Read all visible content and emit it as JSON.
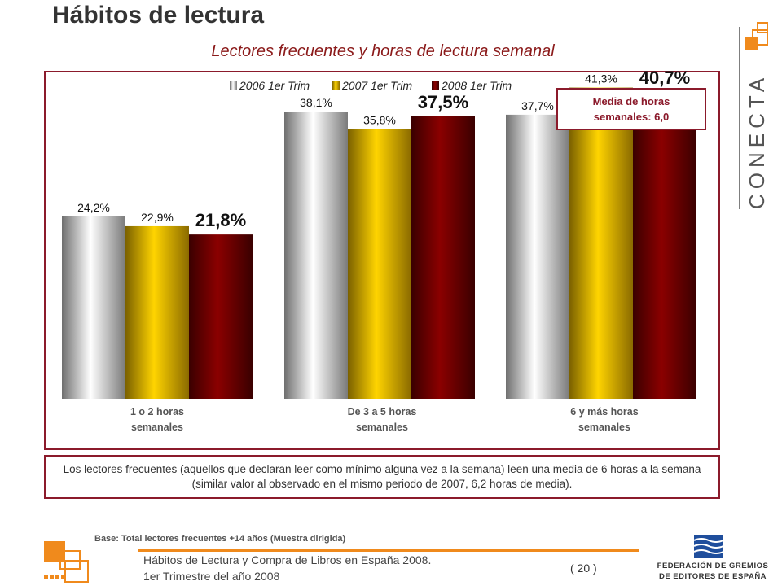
{
  "header": {
    "title": "Hábitos de lectura",
    "subtitle": "Lectores frecuentes y horas de lectura semanal"
  },
  "brand": {
    "logo_text": "CONECTA",
    "accent": "#f08a1c",
    "frame_color": "#8b1a2b"
  },
  "media_box": {
    "line1": "Media de horas",
    "line2": "semanales: 6,0"
  },
  "chart_data": {
    "type": "bar",
    "categories": [
      "1 o 2 horas semanales",
      "De 3 a 5 horas semanales",
      "6 y más horas semanales"
    ],
    "category_lines": [
      [
        "1 o 2 horas",
        "semanales"
      ],
      [
        "De 3 a 5 horas",
        "semanales"
      ],
      [
        "6 y más horas",
        "semanales"
      ]
    ],
    "series": [
      {
        "name": "2006 1er Trim",
        "values": [
          24.2,
          38.1,
          37.7
        ],
        "labels": [
          "24,2%",
          "38,1%",
          "37,7%"
        ],
        "color": "#d9d9d9"
      },
      {
        "name": "2007 1er Trim",
        "values": [
          22.9,
          35.8,
          41.3
        ],
        "labels": [
          "22,9%",
          "35,8%",
          "41,3%"
        ],
        "color": "#f2c200"
      },
      {
        "name": "2008 1er Trim",
        "values": [
          21.8,
          37.5,
          40.7
        ],
        "labels": [
          "21,8%",
          "37,5%",
          "40,7%"
        ],
        "color": "#7a0000"
      }
    ],
    "legend_position": "top",
    "grid": false,
    "ylim": [
      0,
      50
    ]
  },
  "note": "Los lectores frecuentes (aquellos que declaran leer como mínimo alguna vez a la semana) leen una media de 6 horas a la semana (similar valor al observado en el mismo periodo de 2007, 6,2 horas de media).",
  "footer": {
    "base": "Base:  Total lectores frecuentes  +14 años (Muestra  dirigida)",
    "line1": "Hábitos de Lectura y Compra de Libros en España 2008.",
    "line2": "1er Trimestre del año 2008",
    "page": "( 20 )",
    "federation_line1": "FEDERACIÓN DE GREMIOS",
    "federation_line2": "DE EDITORES DE ESPAÑA"
  }
}
